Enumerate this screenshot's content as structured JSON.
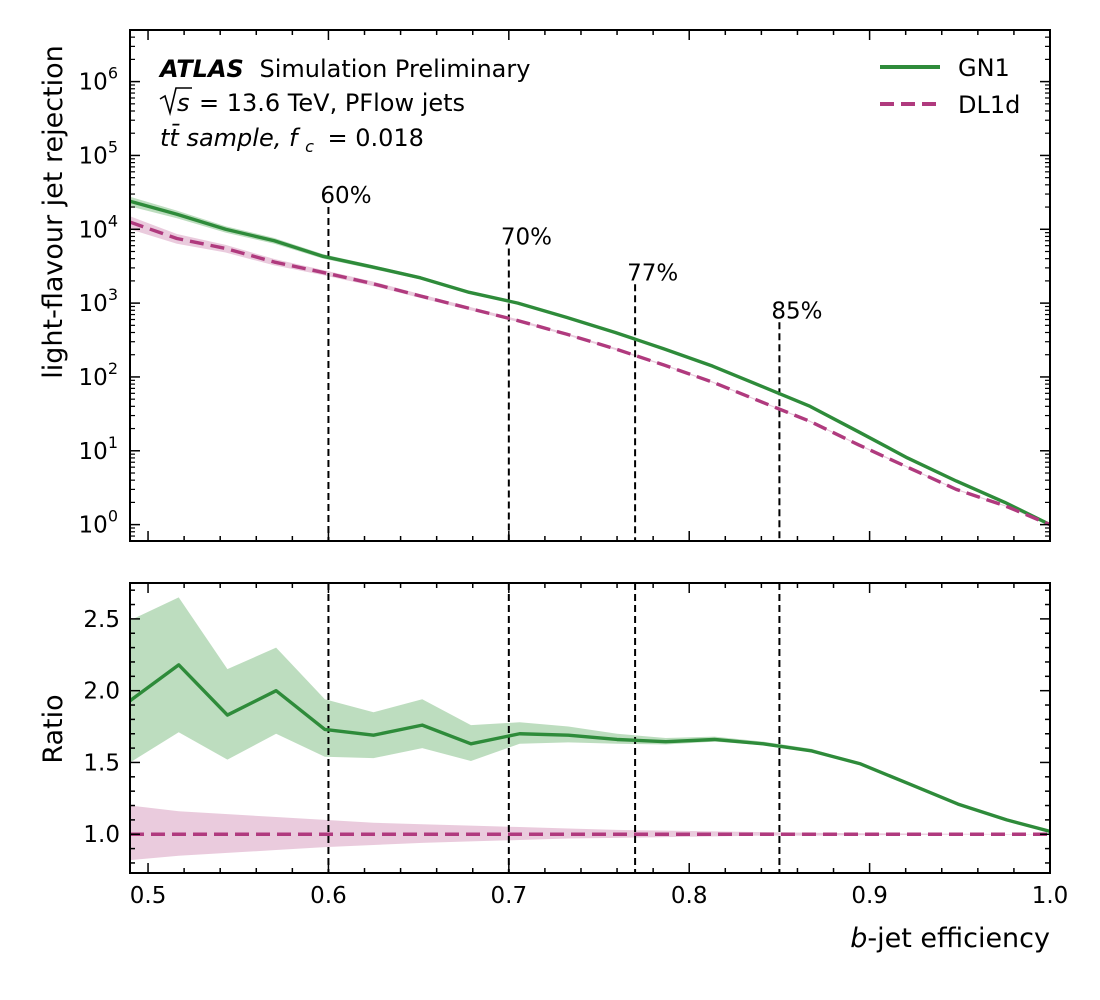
{
  "chart_data": [
    {
      "type": "line",
      "panel": "main",
      "ylabel": "light-flavour jet rejection",
      "yscale": "log",
      "xlim": [
        0.49,
        1.0
      ],
      "ylim": [
        0.6,
        5000000
      ],
      "ytick_exponents": [
        "0",
        "1",
        "2",
        "3",
        "4",
        "5",
        "6"
      ],
      "ytick_base": "10",
      "annotations": {
        "experiment": "ATLAS",
        "status": "Simulation Preliminary",
        "energy_prefix": "s",
        "energy_suffix": "= 13.6 TeV, PFlow jets",
        "sample": "tt̄ sample, ",
        "fc_symbol": "f",
        "fc_sub": "c",
        "fc_value": "= 0.018"
      },
      "working_points": [
        {
          "x": 0.6,
          "label": "60%",
          "label_y": 20000
        },
        {
          "x": 0.7,
          "label": "70%",
          "label_y": 5500
        },
        {
          "x": 0.77,
          "label": "77%",
          "label_y": 1800
        },
        {
          "x": 0.85,
          "label": "85%",
          "label_y": 550
        }
      ],
      "legend_position": "top-right",
      "series": [
        {
          "name": "GN1",
          "color": "#2e8b3a",
          "band_color": "#a7d1aa",
          "style": "solid",
          "x": [
            0.49,
            0.516,
            0.543,
            0.57,
            0.597,
            0.624,
            0.651,
            0.678,
            0.705,
            0.732,
            0.759,
            0.786,
            0.813,
            0.84,
            0.867,
            0.894,
            0.921,
            0.948,
            0.975,
            1.0
          ],
          "y": [
            24000,
            16000,
            10000,
            7000,
            4300,
            3100,
            2200,
            1400,
            1000,
            640,
            400,
            240,
            140,
            75,
            40,
            18,
            8,
            3.9,
            2.0,
            1.0
          ],
          "band_rel": [
            0.15,
            0.12,
            0.1,
            0.09,
            0.07,
            0.06,
            0.05,
            0.04,
            0.04,
            0.03,
            0.03,
            0.02,
            0.02,
            0.02,
            0.02,
            0.02,
            0.02,
            0.02,
            0.02,
            0.02
          ]
        },
        {
          "name": "DL1d",
          "color": "#b03a7e",
          "band_color": "#e3b9d2",
          "style": "dashed",
          "x": [
            0.49,
            0.516,
            0.543,
            0.57,
            0.597,
            0.624,
            0.651,
            0.678,
            0.705,
            0.732,
            0.759,
            0.786,
            0.813,
            0.84,
            0.867,
            0.894,
            0.921,
            0.948,
            0.975,
            1.0
          ],
          "y": [
            12500,
            7500,
            5500,
            3600,
            2600,
            1850,
            1250,
            850,
            580,
            380,
            240,
            145,
            85,
            46,
            25,
            12,
            6,
            3.0,
            1.8,
            1.0
          ],
          "band_rel": [
            0.2,
            0.15,
            0.12,
            0.1,
            0.08,
            0.07,
            0.06,
            0.05,
            0.04,
            0.03,
            0.03,
            0.02,
            0.02,
            0.02,
            0.02,
            0.02,
            0.02,
            0.02,
            0.02,
            0.02
          ]
        }
      ]
    },
    {
      "type": "line",
      "panel": "ratio",
      "ylabel": "Ratio",
      "xlabel_italic": "b",
      "xlabel_rest": "-jet efficiency",
      "xlim": [
        0.49,
        1.0
      ],
      "ylim": [
        0.73,
        2.75
      ],
      "yticks": [
        "1.0",
        "1.5",
        "2.0",
        "2.5"
      ],
      "xticks": [
        "0.5",
        "0.6",
        "0.7",
        "0.8",
        "0.9",
        "1.0"
      ],
      "working_points_x": [
        0.6,
        0.7,
        0.77,
        0.85
      ],
      "series": [
        {
          "name": "GN1",
          "color": "#2e8b3a",
          "band_color": "#a7d1aa",
          "style": "solid",
          "x": [
            0.49,
            0.517,
            0.544,
            0.571,
            0.598,
            0.625,
            0.652,
            0.679,
            0.706,
            0.733,
            0.76,
            0.787,
            0.814,
            0.841,
            0.868,
            0.895,
            0.922,
            0.949,
            0.976,
            1.0
          ],
          "y": [
            1.93,
            2.18,
            1.83,
            2.0,
            1.73,
            1.69,
            1.76,
            1.63,
            1.7,
            1.69,
            1.66,
            1.645,
            1.66,
            1.63,
            1.58,
            1.49,
            1.35,
            1.21,
            1.1,
            1.02
          ],
          "band_low": [
            1.5,
            1.71,
            1.52,
            1.7,
            1.54,
            1.53,
            1.6,
            1.51,
            1.63,
            1.64,
            1.63,
            1.625,
            1.645,
            1.62,
            1.57,
            1.485,
            1.345,
            1.205,
            1.095,
            1.015
          ],
          "band_high": [
            2.49,
            2.65,
            2.15,
            2.3,
            1.94,
            1.85,
            1.94,
            1.76,
            1.78,
            1.75,
            1.7,
            1.67,
            1.68,
            1.645,
            1.595,
            1.495,
            1.355,
            1.215,
            1.105,
            1.025
          ]
        },
        {
          "name": "DL1d",
          "color": "#b03a7e",
          "band_color": "#e3b9d2",
          "style": "dashed",
          "x": [
            0.49,
            0.517,
            0.544,
            0.571,
            0.598,
            0.625,
            0.652,
            0.679,
            0.706,
            0.733,
            0.76,
            0.787,
            0.814,
            0.841,
            0.868,
            0.895,
            0.922,
            0.949,
            0.976,
            1.0
          ],
          "y": [
            1.0,
            1.0,
            1.0,
            1.0,
            1.0,
            1.0,
            1.0,
            1.0,
            1.0,
            1.0,
            1.0,
            1.0,
            1.0,
            1.0,
            1.0,
            1.0,
            1.0,
            1.0,
            1.0,
            1.0
          ],
          "band_low": [
            0.82,
            0.85,
            0.87,
            0.89,
            0.91,
            0.925,
            0.94,
            0.95,
            0.96,
            0.97,
            0.975,
            0.98,
            0.985,
            0.99,
            0.99,
            0.993,
            0.995,
            0.997,
            0.998,
            1.0
          ],
          "band_high": [
            1.2,
            1.16,
            1.14,
            1.12,
            1.1,
            1.08,
            1.07,
            1.06,
            1.05,
            1.04,
            1.03,
            1.025,
            1.02,
            1.015,
            1.01,
            1.007,
            1.005,
            1.003,
            1.002,
            1.0
          ]
        }
      ]
    }
  ]
}
